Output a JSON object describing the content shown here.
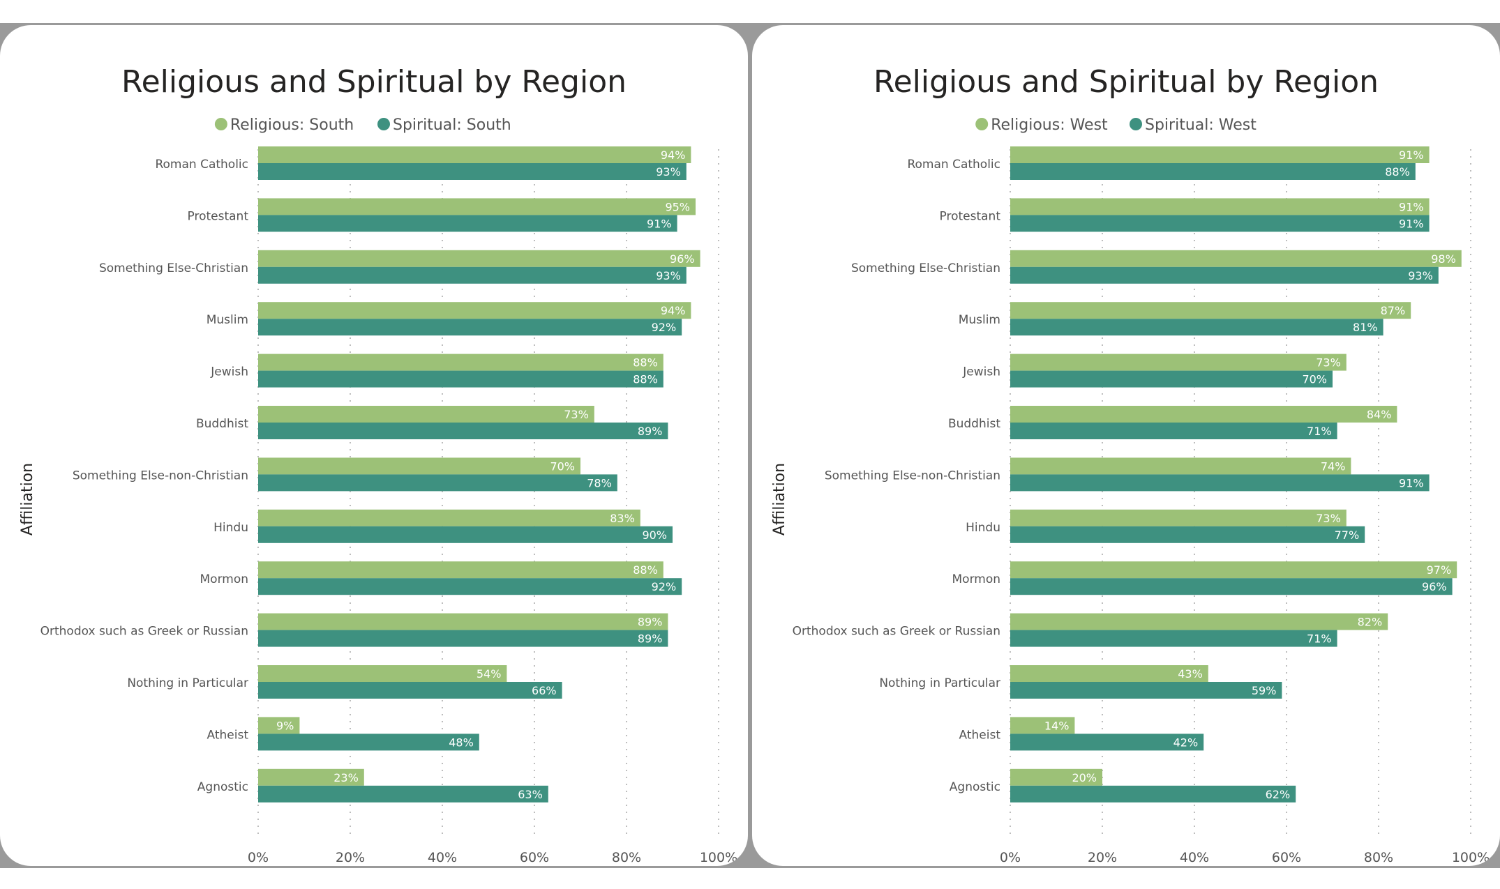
{
  "colors": {
    "religious": "#9cc177",
    "spiritual": "#3e9180",
    "grid": "#bdbdbd",
    "text": "#444444",
    "title": "#252423"
  },
  "chart_data": [
    {
      "type": "bar",
      "orientation": "horizontal",
      "title": "Religious and Spiritual by Region",
      "ylabel": "Affiliation",
      "xlabel": "",
      "xlim": [
        0,
        100
      ],
      "xticks": [
        "0%",
        "20%",
        "40%",
        "60%",
        "80%",
        "100%"
      ],
      "legend_position": "top-center",
      "grid": true,
      "categories": [
        "Roman Catholic",
        "Protestant",
        "Something Else-Christian",
        "Muslim",
        "Jewish",
        "Buddhist",
        "Something Else-non-Christian",
        "Hindu",
        "Mormon",
        "Orthodox such as Greek or Russian",
        "Nothing in Particular",
        "Atheist",
        "Agnostic"
      ],
      "series": [
        {
          "name": "Religious: South",
          "color": "#9cc177",
          "values": [
            94,
            95,
            96,
            94,
            88,
            73,
            70,
            83,
            88,
            89,
            54,
            9,
            23
          ]
        },
        {
          "name": "Spiritual: South",
          "color": "#3e9180",
          "values": [
            93,
            91,
            93,
            92,
            88,
            89,
            78,
            90,
            92,
            89,
            66,
            48,
            63
          ]
        }
      ]
    },
    {
      "type": "bar",
      "orientation": "horizontal",
      "title": "Religious and Spiritual by Region",
      "ylabel": "Affiliation",
      "xlabel": "",
      "xlim": [
        0,
        100
      ],
      "xticks": [
        "0%",
        "20%",
        "40%",
        "60%",
        "80%",
        "100%"
      ],
      "legend_position": "top-center",
      "grid": true,
      "categories": [
        "Roman Catholic",
        "Protestant",
        "Something Else-Christian",
        "Muslim",
        "Jewish",
        "Buddhist",
        "Something Else-non-Christian",
        "Hindu",
        "Mormon",
        "Orthodox such as Greek or Russian",
        "Nothing in Particular",
        "Atheist",
        "Agnostic"
      ],
      "series": [
        {
          "name": "Religious: West",
          "color": "#9cc177",
          "values": [
            91,
            91,
            98,
            87,
            73,
            84,
            74,
            73,
            97,
            82,
            43,
            14,
            20
          ]
        },
        {
          "name": "Spiritual: West",
          "color": "#3e9180",
          "values": [
            88,
            91,
            93,
            81,
            70,
            71,
            91,
            77,
            96,
            71,
            59,
            42,
            62
          ]
        }
      ]
    }
  ]
}
